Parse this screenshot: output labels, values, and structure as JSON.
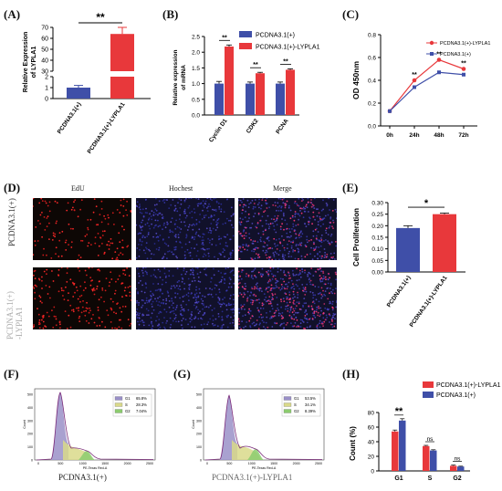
{
  "panels": {
    "A": "(A)",
    "B": "(B)",
    "C": "(C)",
    "D": "(D)",
    "E": "(E)",
    "F": "(F)",
    "G": "(G)",
    "H": "(H)"
  },
  "chart_data": [
    {
      "id": "A",
      "type": "bar",
      "categories": [
        "PCDNA3.1(+)",
        "PCDNA3.1(+)-LYPLA1"
      ],
      "values": [
        1,
        64
      ],
      "errors": [
        0.2,
        6
      ],
      "ylabel": "Relative Expression of LYPLA1",
      "yticks": [
        "0",
        "1",
        "2",
        "30",
        "40",
        "50",
        "60",
        "70"
      ],
      "ylim": [
        0,
        70
      ],
      "axis_break": [
        2,
        30
      ],
      "significance": "**",
      "colors": [
        "#3f4fa8",
        "#e8383b"
      ]
    },
    {
      "id": "B",
      "type": "bar",
      "categories": [
        "Cyclin D1",
        "CDK2",
        "PCNA"
      ],
      "series": [
        {
          "name": "PCDNA3.1(+)",
          "values": [
            1.0,
            1.0,
            1.0
          ],
          "errors": [
            0.07,
            0.05,
            0.05
          ],
          "color": "#3f4fa8"
        },
        {
          "name": "PCDNA3.1(+)-LYPLA1",
          "values": [
            2.18,
            1.33,
            1.44
          ],
          "errors": [
            0.05,
            0.03,
            0.03
          ],
          "color": "#e8383b"
        }
      ],
      "ylabel": "Relative expression of mRNA",
      "yticks": [
        "0.0",
        "0.5",
        "1.0",
        "1.5",
        "2.0",
        "2.5"
      ],
      "ylim": [
        0,
        2.5
      ],
      "significance": [
        "**",
        "**",
        "**"
      ]
    },
    {
      "id": "C",
      "type": "line",
      "x": [
        "0h",
        "24h",
        "48h",
        "72h"
      ],
      "series": [
        {
          "name": "PCDNA3.1(+)-LYPLA1",
          "values": [
            0.13,
            0.4,
            0.58,
            0.5
          ],
          "color": "#e8383b"
        },
        {
          "name": "PCDNA3.1(+)",
          "values": [
            0.13,
            0.34,
            0.47,
            0.45
          ],
          "color": "#3f4fa8"
        }
      ],
      "ylabel": "OD 450nm",
      "yticks": [
        "0.0",
        "0.2",
        "0.4",
        "0.6",
        "0.8"
      ],
      "ylim": [
        0,
        0.8
      ],
      "significance": [
        "",
        "**",
        "**",
        "**"
      ]
    },
    {
      "id": "E",
      "type": "bar",
      "categories": [
        "PCDNA3.1(+)",
        "PCDNA3.1(+)-LYPLA1"
      ],
      "values": [
        0.19,
        0.25
      ],
      "errors": [
        0.01,
        0.005
      ],
      "ylabel": "Cell Proliferation",
      "yticks": [
        "0.00",
        "0.05",
        "0.10",
        "0.15",
        "0.20",
        "0.25",
        "0.30"
      ],
      "ylim": [
        0,
        0.3
      ],
      "significance": "*",
      "colors": [
        "#3f4fa8",
        "#e8383b"
      ]
    },
    {
      "id": "H",
      "type": "bar",
      "categories": [
        "G1",
        "S",
        "G2"
      ],
      "series": [
        {
          "name": "PCDNA3.1(+)-LYPLA1",
          "values": [
            54,
            34,
            7
          ],
          "errors": [
            2,
            1,
            1
          ],
          "color": "#e8383b"
        },
        {
          "name": "PCDNA3.1(+)",
          "values": [
            69,
            28,
            6
          ],
          "errors": [
            2.5,
            1,
            0.5
          ],
          "color": "#3f4fa8"
        }
      ],
      "ylabel": "Count (%)",
      "yticks": [
        "0",
        "20",
        "40",
        "60",
        "80"
      ],
      "ylim": [
        0,
        80
      ],
      "significance": [
        "**",
        "ns",
        "ns"
      ]
    }
  ],
  "microscopy": {
    "columns": [
      "EdU",
      "Hochest",
      "Merge"
    ],
    "rows": [
      "PCDNA3.1(+)",
      "PCDNA3.1(+)\n-LYPLA1"
    ]
  },
  "flow": {
    "F": {
      "caption": "PCDNA3.1(+)",
      "legend": [
        {
          "name": "G1",
          "value": "65.8%",
          "color": "#9a90c8"
        },
        {
          "name": "S",
          "value": "28.3%",
          "color": "#d9d98a"
        },
        {
          "name": "G2",
          "value": "7.04%",
          "color": "#8ccc6e"
        }
      ],
      "xlabel": "PE-Texas Red-A",
      "ylabel": "Count",
      "yticks": [
        "0",
        "100",
        "200",
        "300",
        "400",
        "500"
      ],
      "xticks": [
        "0",
        "500",
        "1000",
        "1500",
        "2000",
        "2500"
      ]
    },
    "G": {
      "caption": "PCDNA3.1(+)-LYPLA1",
      "legend": [
        {
          "name": "G1",
          "value": "53.5%",
          "color": "#9a90c8"
        },
        {
          "name": "S",
          "value": "34.1%",
          "color": "#d9d98a"
        },
        {
          "name": "G2",
          "value": "8.39%",
          "color": "#8ccc6e"
        }
      ],
      "xlabel": "PE-Texas Red-A",
      "ylabel": "Count",
      "yticks": [
        "0",
        "100",
        "200",
        "300",
        "400",
        "500"
      ],
      "xticks": [
        "0",
        "500",
        "1000",
        "1500",
        "2000",
        "2500"
      ]
    }
  }
}
